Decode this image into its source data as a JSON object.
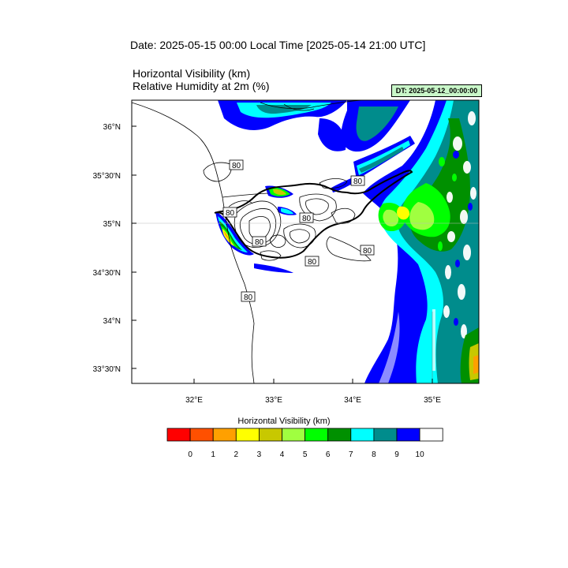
{
  "header": {
    "date_line": "Date: 2025-05-15  00:00 Local Time [2025-05-14  21:00 UTC]",
    "var_line_1": "Horizontal Visibility   (km)",
    "var_line_2": "Relative Humidity at 2m   (%)",
    "dt_badge": "DT: 2025-05-12_00:00:00"
  },
  "map": {
    "lat_labels": [
      "36°N",
      "35°30'N",
      "35°N",
      "34°30'N",
      "34°N",
      "33°30'N"
    ],
    "lon_labels": [
      "32°E",
      "33°E",
      "34°E",
      "35°E"
    ],
    "contour_label": "80",
    "contour_label_count": 8
  },
  "colorbar": {
    "title": "Horizontal Visibility  (km)",
    "colors": [
      "#ff0000",
      "#ff5000",
      "#ffa000",
      "#ffff00",
      "#c8c800",
      "#a0ff40",
      "#00ff00",
      "#009000",
      "#00ffff",
      "#008c8c",
      "#0000ff",
      "#ffffff"
    ],
    "tick_labels": [
      "0",
      "1",
      "2",
      "3",
      "4",
      "5",
      "6",
      "7",
      "8",
      "9",
      "10"
    ]
  }
}
